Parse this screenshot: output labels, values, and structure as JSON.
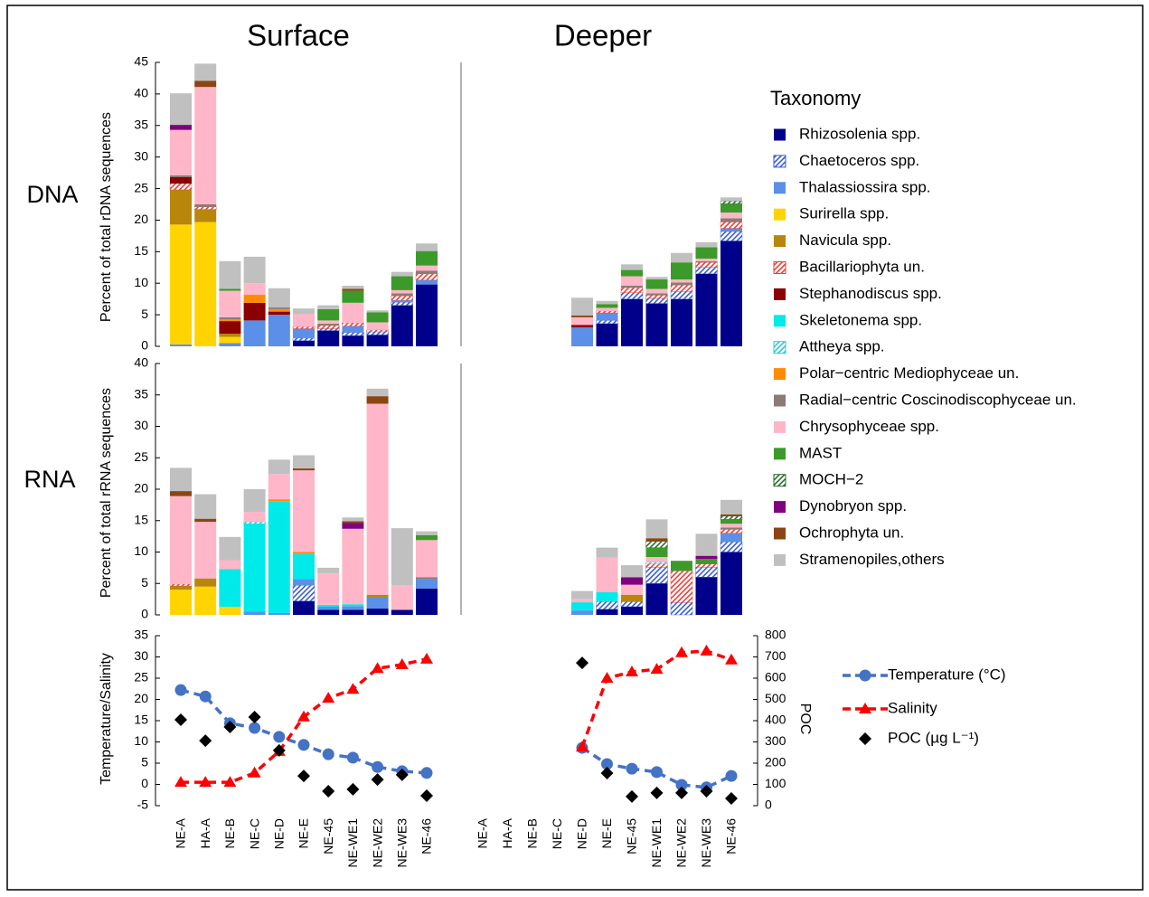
{
  "columns": [
    "Surface",
    "Deeper"
  ],
  "chart_data": [
    {
      "type": "bar",
      "stacked": true,
      "label": "DNA",
      "y_label": "Percent of total rDNA sequences",
      "legend_title": "Taxonomy",
      "ylim": [
        0,
        45
      ],
      "yticks": [
        0,
        5,
        10,
        15,
        20,
        25,
        30,
        35,
        40,
        45
      ],
      "series": [
        {
          "name": "Rhizosolenia spp.",
          "color": "#00008b",
          "values": [
            0,
            0,
            0,
            0,
            0,
            0.9,
            2.5,
            1.7,
            1.8,
            6.5,
            9.8,
            null,
            null,
            null,
            null,
            0,
            3.6,
            7.5,
            6.8,
            7.5,
            11.5,
            16.7
          ]
        },
        {
          "name": "Chaetoceros spp.",
          "color": "#3a5ccc",
          "pattern": "hatch",
          "values": [
            0,
            0,
            0,
            0,
            0,
            0.4,
            0.3,
            0.5,
            0.5,
            0.5,
            0,
            null,
            null,
            null,
            null,
            0,
            0.5,
            1,
            0.8,
            1.2,
            1,
            1.5
          ]
        },
        {
          "name": "Thalassiossira spp.",
          "color": "#5b8fe8",
          "values": [
            0.3,
            0,
            0.5,
            4.1,
            5,
            1.5,
            0,
            1,
            0,
            0.3,
            0.7,
            null,
            null,
            null,
            null,
            3,
            1.2,
            0,
            0,
            0,
            0,
            0.5
          ]
        },
        {
          "name": "Surirella spp.",
          "color": "#ffd400",
          "values": [
            19,
            19.7,
            1,
            0,
            0,
            0,
            0,
            0,
            0,
            0,
            0,
            null,
            null,
            null,
            null,
            0,
            0,
            0,
            0,
            0,
            0,
            0
          ]
        },
        {
          "name": "Navicula spp.",
          "color": "#b8860b",
          "values": [
            5.5,
            2,
            0.5,
            0,
            0,
            0,
            0,
            0,
            0,
            0,
            0,
            null,
            null,
            null,
            null,
            0,
            0,
            0,
            0,
            0,
            0,
            0
          ]
        },
        {
          "name": "Bacillariophyta un.",
          "color": "#e8403a",
          "pattern": "hatch",
          "values": [
            1,
            0.4,
            0,
            0,
            0,
            0.3,
            0.5,
            0.5,
            0.3,
            0.7,
            1,
            null,
            null,
            null,
            null,
            0,
            0.3,
            0.8,
            0.5,
            1,
            0.8,
            1
          ]
        },
        {
          "name": "Stephanodiscus spp.",
          "color": "#8b0000",
          "values": [
            1,
            0,
            2,
            2.8,
            0.5,
            0,
            0,
            0,
            0,
            0,
            0,
            null,
            null,
            null,
            null,
            0.4,
            0,
            0,
            0,
            0,
            0,
            0
          ]
        },
        {
          "name": "Skeletonema spp.",
          "color": "#00eaea",
          "values": [
            0,
            0,
            0,
            0,
            0,
            0,
            0,
            0,
            0,
            0,
            0,
            null,
            null,
            null,
            null,
            0,
            0,
            0,
            0,
            0,
            0,
            0
          ]
        },
        {
          "name": "Attheya spp.",
          "color": "#2ec8d8",
          "pattern": "hatch",
          "values": [
            0,
            0,
            0,
            0,
            0,
            0,
            0,
            0,
            0,
            0,
            0,
            null,
            null,
            null,
            null,
            0,
            0,
            0,
            0,
            0,
            0,
            0
          ]
        },
        {
          "name": "Polar−centric Mediophyceae un.",
          "color": "#ff8c00",
          "values": [
            0,
            0,
            0.3,
            1.3,
            0.4,
            0,
            0,
            0,
            0,
            0,
            0,
            null,
            null,
            null,
            null,
            0,
            0,
            0,
            0,
            0,
            0,
            0
          ]
        },
        {
          "name": "Radial−centric Coscinodiscophyceae un.",
          "color": "#8c7b74",
          "values": [
            0.3,
            0.4,
            0.3,
            0,
            0.3,
            0,
            0.3,
            0,
            0,
            0.4,
            0.5,
            null,
            null,
            null,
            null,
            0,
            0,
            0.3,
            0.3,
            0.4,
            0.2,
            0.6
          ]
        },
        {
          "name": "Chrysophyceae spp.",
          "color": "#ffb6c8",
          "values": [
            7.2,
            18.6,
            4.2,
            1.8,
            0,
            2,
            0.5,
            3.2,
            1.2,
            0.5,
            0.8,
            null,
            null,
            null,
            null,
            1.2,
            0.5,
            1.5,
            0.7,
            0.5,
            0.4,
            0.9
          ]
        },
        {
          "name": "MAST",
          "color": "#3c9a2a",
          "values": [
            0,
            0,
            0.3,
            0,
            0,
            0,
            1.8,
            1.9,
            1.6,
            2.2,
            2.3,
            null,
            null,
            null,
            null,
            0,
            0.6,
            1,
            1.5,
            2.7,
            1.8,
            1.4
          ]
        },
        {
          "name": "MOCH−2",
          "color": "#2d6a2d",
          "pattern": "hatch",
          "values": [
            0,
            0,
            0,
            0,
            0,
            0,
            0,
            0,
            0,
            0,
            0,
            null,
            null,
            null,
            null,
            0,
            0,
            0,
            0,
            0,
            0,
            0.4
          ]
        },
        {
          "name": "Dynobryon spp.",
          "color": "#800080",
          "values": [
            0.8,
            0,
            0,
            0,
            0,
            0,
            0,
            0,
            0,
            0,
            0,
            null,
            null,
            null,
            null,
            0,
            0,
            0,
            0,
            0,
            0,
            0
          ]
        },
        {
          "name": "Ochrophyta un.",
          "color": "#8b4513",
          "values": [
            0,
            1,
            0,
            0,
            0,
            0,
            0,
            0.3,
            0,
            0,
            0,
            null,
            null,
            null,
            null,
            0.3,
            0,
            0,
            0,
            0,
            0,
            0
          ]
        },
        {
          "name": "Stramenopiles,others",
          "color": "#c0c0c0",
          "values": [
            5,
            2.7,
            4.4,
            4.2,
            3,
            0.9,
            0.6,
            0.5,
            0.3,
            0.7,
            1.2,
            null,
            null,
            null,
            null,
            2.8,
            0.5,
            0.9,
            0.4,
            1.5,
            0.8,
            0.6
          ]
        }
      ]
    },
    {
      "type": "bar",
      "stacked": true,
      "label": "RNA",
      "y_label": "Percent of total rRNA sequences",
      "ylim": [
        0,
        40
      ],
      "yticks": [
        0,
        5,
        10,
        15,
        20,
        25,
        30,
        35,
        40
      ],
      "series": [
        {
          "values": [
            0,
            0,
            0,
            0,
            0,
            2.2,
            0.8,
            0.8,
            1,
            0.8,
            4.2,
            null,
            null,
            null,
            null,
            0,
            0.9,
            1.3,
            5,
            0,
            6,
            10
          ]
        },
        {
          "values": [
            0,
            0,
            0,
            0,
            0,
            2.5,
            0,
            0,
            0,
            0,
            0,
            null,
            null,
            null,
            null,
            0,
            1.2,
            0.8,
            2.6,
            2,
            1.6,
            1.6
          ]
        },
        {
          "values": [
            0,
            0,
            0,
            0.5,
            0.3,
            1,
            0.5,
            0.6,
            1.8,
            0,
            1.5,
            null,
            null,
            null,
            null,
            0.7,
            0,
            0,
            0,
            0,
            0,
            1.4
          ]
        },
        {
          "values": [
            4,
            4.5,
            1.3,
            0,
            0,
            0,
            0,
            0,
            0,
            0,
            0,
            null,
            null,
            null,
            null,
            0,
            0,
            0,
            0,
            0,
            0,
            0
          ]
        },
        {
          "values": [
            0.6,
            1.3,
            0,
            0,
            0,
            0,
            0,
            0,
            0.4,
            0,
            0,
            null,
            null,
            null,
            null,
            0,
            0,
            1.1,
            0,
            0,
            0,
            0
          ]
        },
        {
          "values": [
            0.3,
            0,
            0,
            0,
            0,
            0,
            0,
            0,
            0,
            0,
            0,
            null,
            null,
            null,
            null,
            0,
            0,
            0,
            0.5,
            5,
            0.5,
            0.6
          ]
        },
        {
          "values": [
            0,
            0,
            0,
            0,
            0,
            0,
            0,
            0,
            0,
            0,
            0,
            null,
            null,
            null,
            null,
            0,
            0,
            0,
            0,
            0,
            0,
            0
          ]
        },
        {
          "values": [
            0,
            0,
            6,
            14,
            17.8,
            4,
            0.3,
            0.3,
            0,
            0,
            0,
            null,
            null,
            null,
            null,
            1.3,
            1.5,
            0,
            0,
            0,
            0,
            0
          ]
        },
        {
          "values": [
            0,
            0,
            0,
            0.3,
            0,
            0,
            0,
            0,
            0,
            0,
            0,
            null,
            null,
            null,
            null,
            0,
            0,
            0,
            0.3,
            0,
            0,
            0
          ]
        },
        {
          "values": [
            0,
            0,
            0,
            0,
            0.3,
            0.3,
            0,
            0,
            0,
            0,
            0,
            null,
            null,
            null,
            null,
            0,
            0,
            0,
            0,
            0,
            0,
            0
          ]
        },
        {
          "values": [
            0,
            0,
            0,
            0,
            0,
            0,
            0,
            0,
            0,
            0,
            0.3,
            null,
            null,
            null,
            null,
            0,
            0,
            0,
            0,
            0,
            0,
            0.3
          ]
        },
        {
          "values": [
            14,
            9,
            1.4,
            1.6,
            4,
            13,
            5,
            12,
            30.4,
            3.9,
            5.9,
            null,
            null,
            null,
            null,
            0.5,
            5.5,
            1.6,
            0.8,
            0,
            0,
            0.6
          ]
        },
        {
          "values": [
            0,
            0,
            0,
            0,
            0,
            0,
            0,
            0,
            0,
            0,
            0.8,
            null,
            null,
            null,
            null,
            0,
            0,
            0,
            1.5,
            1.6,
            0.8,
            0.7
          ]
        },
        {
          "values": [
            0,
            0,
            0,
            0,
            0,
            0,
            0,
            0,
            0,
            0,
            0,
            null,
            null,
            null,
            null,
            0,
            0,
            0,
            1,
            0,
            0,
            0.5
          ]
        },
        {
          "values": [
            0,
            0,
            0,
            0,
            0,
            0,
            0,
            0.9,
            0,
            0,
            0,
            null,
            null,
            null,
            null,
            0,
            0,
            1.2,
            0,
            0,
            0.5,
            0
          ]
        },
        {
          "values": [
            0.8,
            0.5,
            0,
            0,
            0,
            0.3,
            0,
            0.3,
            1.2,
            0,
            0,
            null,
            null,
            null,
            null,
            0,
            0,
            0,
            0.5,
            0,
            0,
            0.3
          ]
        },
        {
          "values": [
            3.7,
            3.9,
            3.7,
            3.6,
            2.3,
            2.1,
            0.9,
            0.6,
            1.2,
            9.1,
            0.6,
            null,
            null,
            null,
            null,
            1.3,
            1.6,
            1.9,
            3,
            0,
            3.5,
            2.3
          ]
        }
      ]
    },
    {
      "type": "line",
      "y_label": "Temperature/Salinity",
      "y2_label": "POC",
      "categories": [
        "NE-A",
        "HA-A",
        "NE-B",
        "NE-C",
        "NE-D",
        "NE-E",
        "NE-45",
        "NE-WE1",
        "NE-WE2",
        "NE-WE3",
        "NE-46",
        "NE-A",
        "HA-A",
        "NE-B",
        "NE-C",
        "NE-D",
        "NE-E",
        "NE-45",
        "NE-WE1",
        "NE-WE2",
        "NE-WE3",
        "NE-46"
      ],
      "ylim": [
        -5,
        35
      ],
      "yticks": [
        -5,
        0,
        5,
        10,
        15,
        20,
        25,
        30,
        35
      ],
      "y2lim": [
        0,
        800
      ],
      "y2ticks": [
        0,
        100,
        200,
        300,
        400,
        500,
        600,
        700,
        800
      ],
      "series": [
        {
          "name": "Temperature (°C)",
          "color": "#4472c4",
          "marker": "circle",
          "line": true,
          "values": [
            22.2,
            20.7,
            14.4,
            13.3,
            11.2,
            9.3,
            7.1,
            6.3,
            4.1,
            3.1,
            2.7,
            null,
            null,
            null,
            null,
            8.6,
            4.8,
            3.7,
            2.9,
            -0.1,
            -0.7,
            2
          ]
        },
        {
          "name": "Salinity",
          "color": "#ff0000",
          "marker": "triangle",
          "line": true,
          "values": [
            0.5,
            0.5,
            0.5,
            2.7,
            7.8,
            15.9,
            20.3,
            22.4,
            27.3,
            28.2,
            29.5,
            null,
            null,
            null,
            null,
            8.8,
            25,
            26.5,
            27.1,
            31,
            31.4,
            29.3
          ]
        },
        {
          "name": "POC (µg L⁻¹)",
          "color": "#000000",
          "marker": "diamond",
          "line": false,
          "axis": "y2",
          "values": [
            404,
            306,
            370,
            417,
            260,
            140,
            68,
            77,
            123,
            145,
            47,
            null,
            null,
            null,
            null,
            672,
            153,
            43,
            60,
            60,
            68,
            34
          ]
        }
      ]
    }
  ]
}
